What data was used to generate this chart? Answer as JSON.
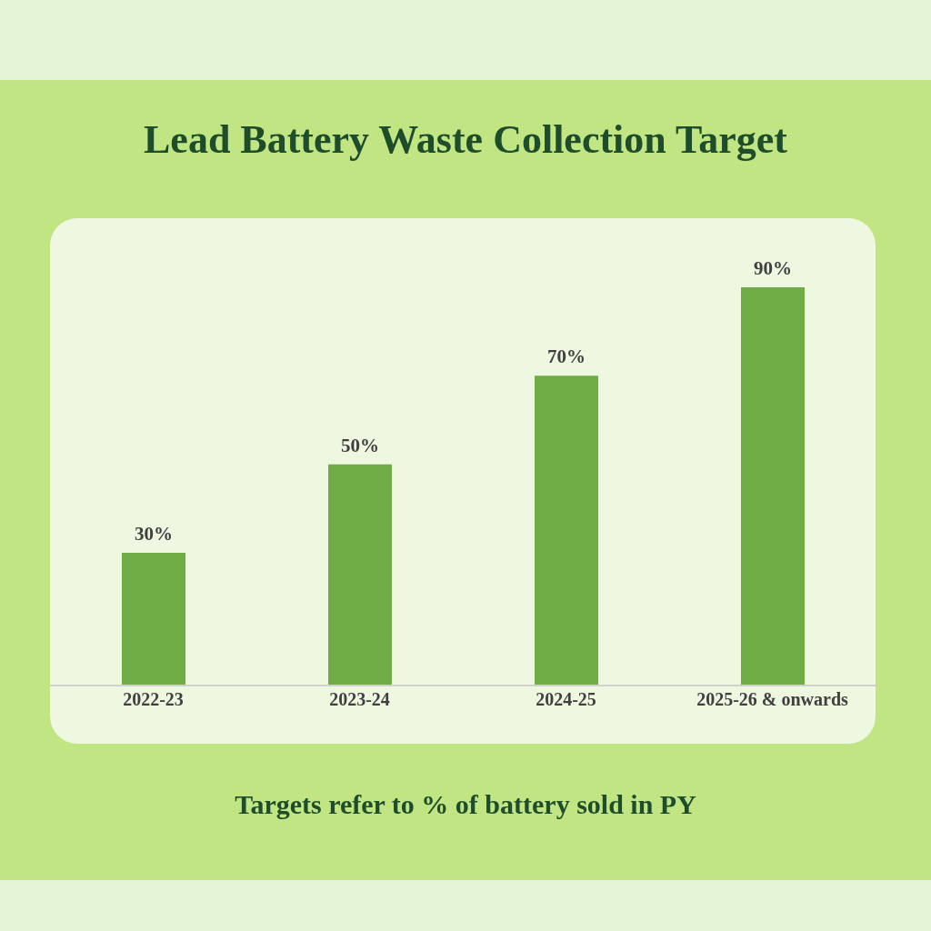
{
  "chart_data": {
    "type": "bar",
    "title": "Lead Battery Waste Collection Target",
    "categories": [
      "2022-23",
      "2023-24",
      "2024-25",
      "2025-26 & onwards"
    ],
    "values": [
      30,
      50,
      70,
      90
    ],
    "value_labels": [
      "30%",
      "50%",
      "70%",
      "90%"
    ],
    "color": "#70ad47",
    "tick_labels": "x",
    "annotations": [
      "Targets refer to % of battery sold in PY"
    ]
  }
}
